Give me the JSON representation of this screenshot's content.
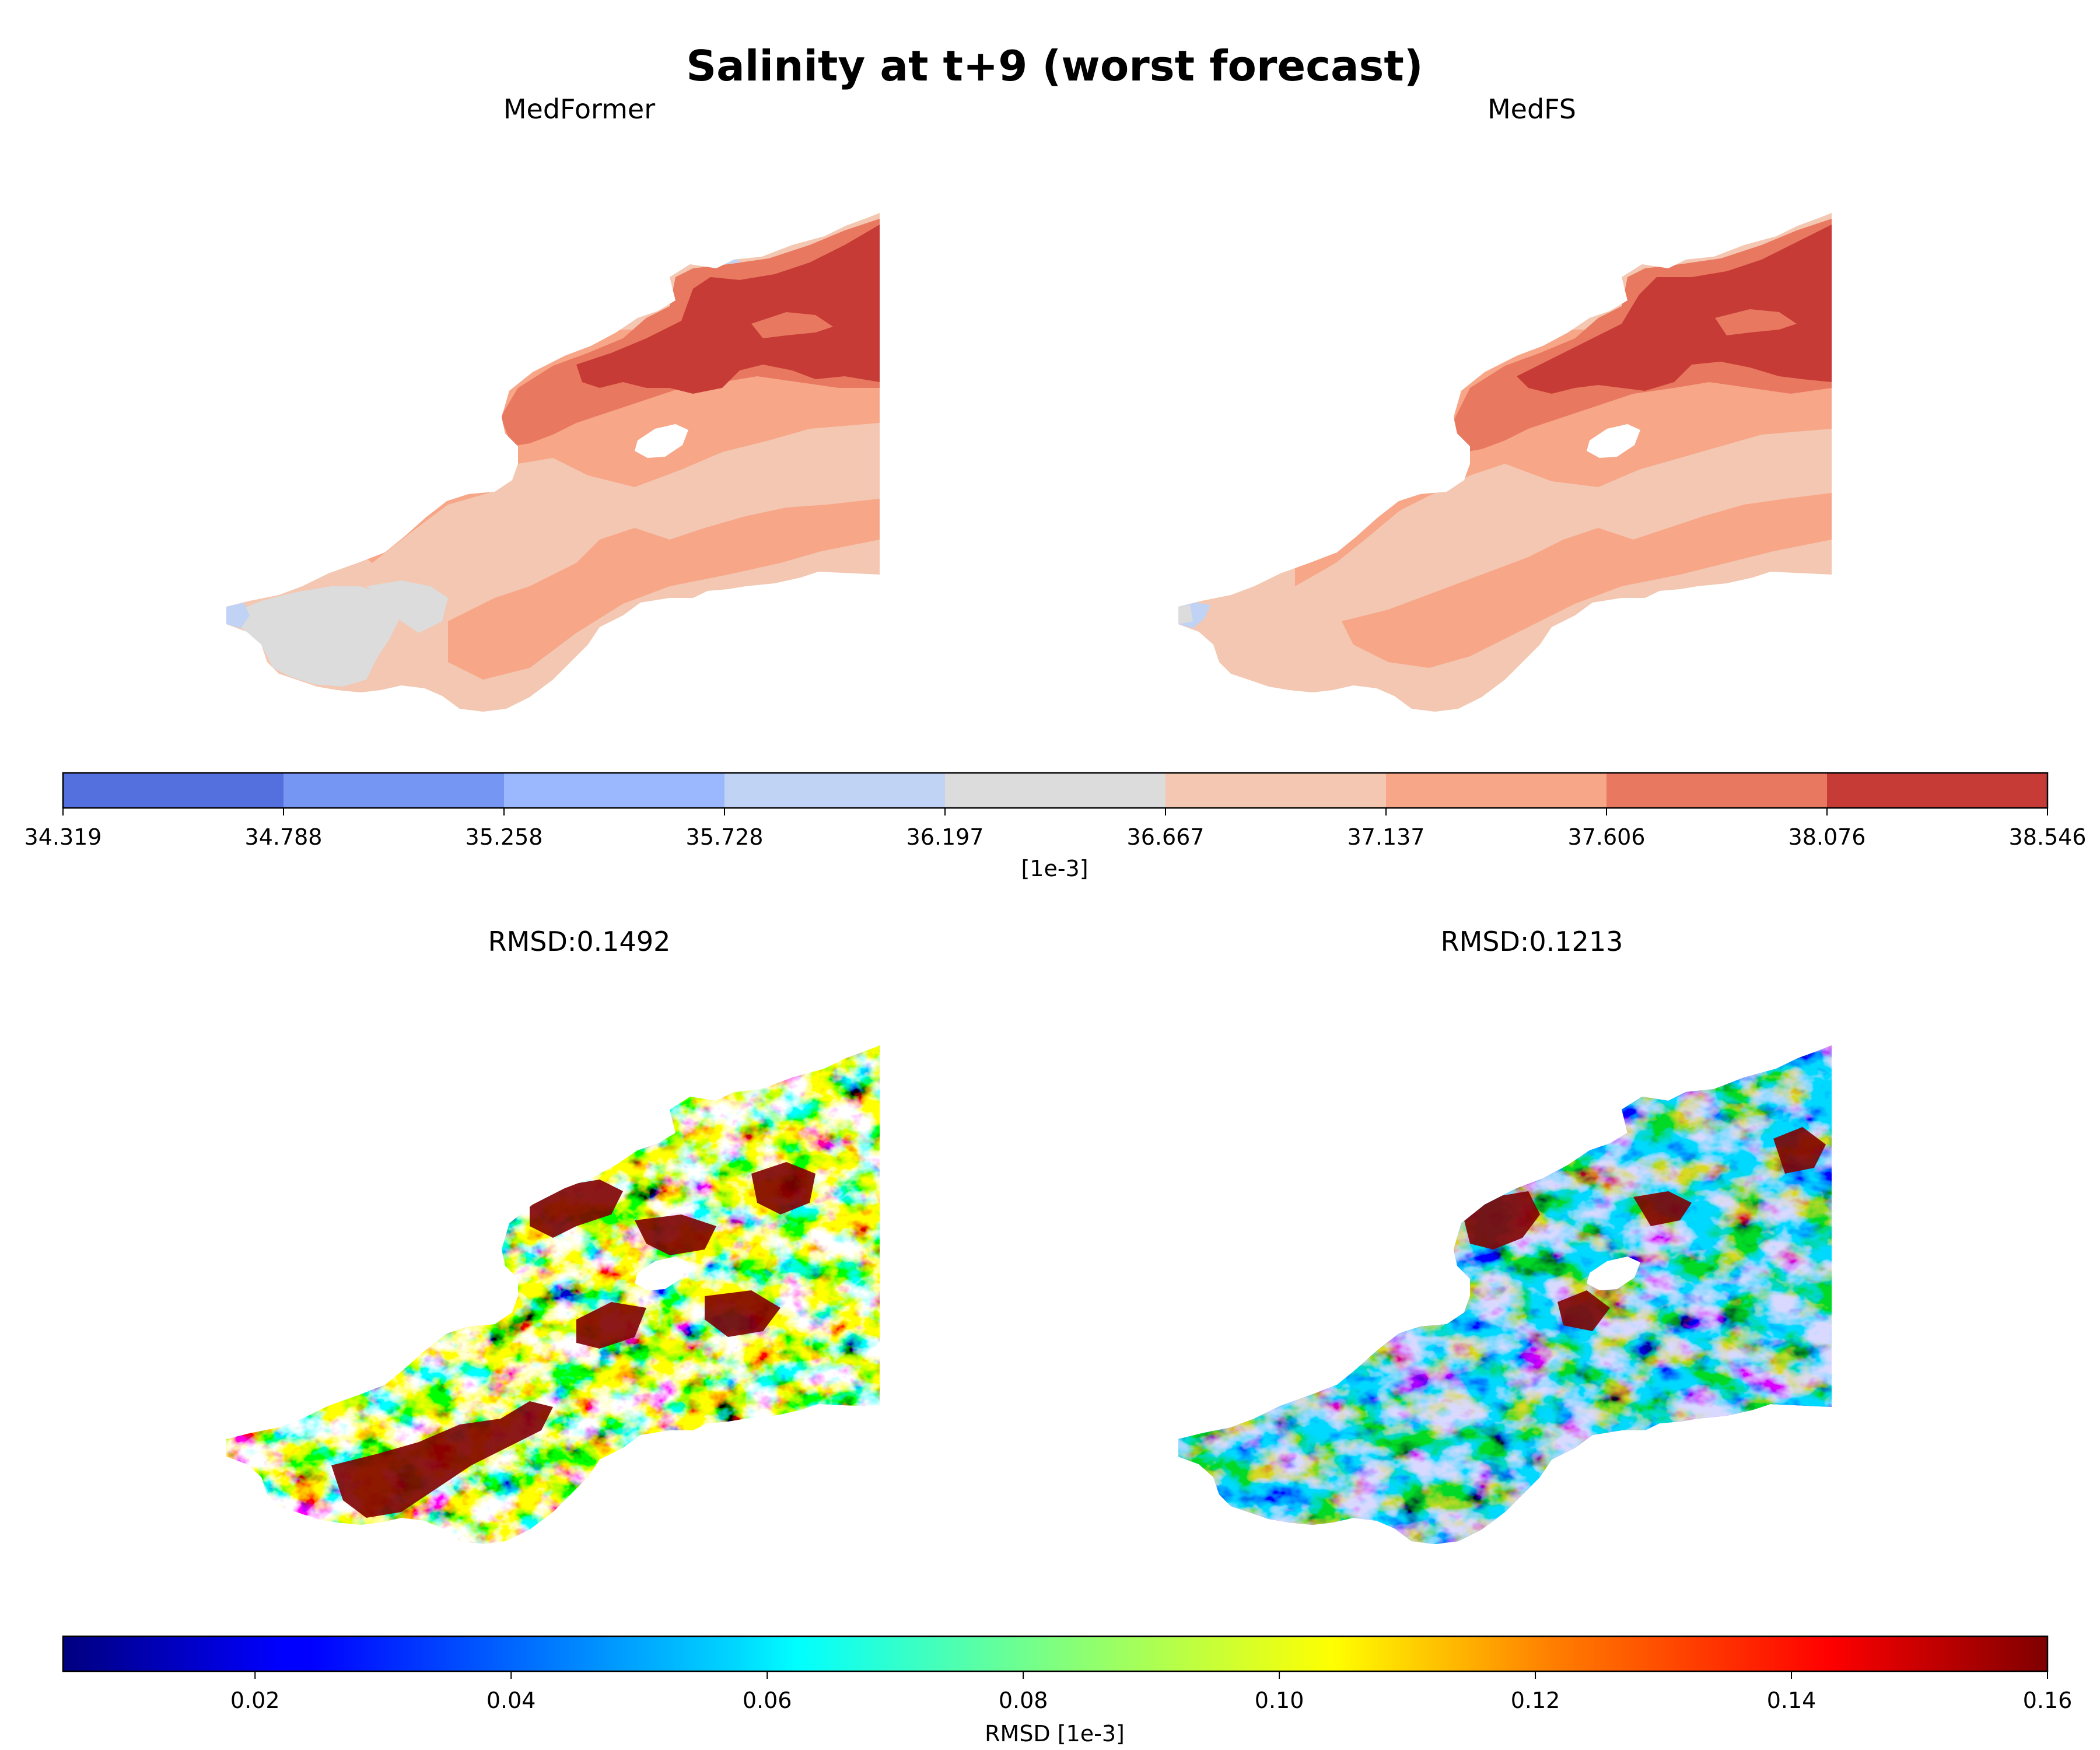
{
  "figure": {
    "title": "Salinity at t+9 (worst forecast)"
  },
  "chart_data": [
    {
      "type": "heatmap",
      "title": "MedFormer",
      "description_level": "contour-filled salinity field",
      "colormap": "coolwarm",
      "colorbar_ref": "salinity_colorbar"
    },
    {
      "type": "heatmap",
      "title": "MedFS",
      "colormap": "coolwarm",
      "colorbar_ref": "salinity_colorbar"
    },
    {
      "type": "heatmap",
      "title": "RMSD:0.1492",
      "colormap": "jet",
      "colorbar_ref": "rmsd_colorbar"
    },
    {
      "type": "heatmap",
      "title": "RMSD:0.1213",
      "colormap": "jet",
      "colorbar_ref": "rmsd_colorbar"
    }
  ],
  "salinity_colorbar": {
    "label": "[1e-3]",
    "ticks": [
      "34.319",
      "34.788",
      "35.258",
      "35.728",
      "36.197",
      "36.667",
      "37.137",
      "37.606",
      "38.076",
      "38.546"
    ],
    "bin_colors": [
      "#5470de",
      "#7596f3",
      "#9bb8fe",
      "#c1d3f5",
      "#dcdcdc",
      "#f3c7b1",
      "#f7a688",
      "#e8785f",
      "#c63b35"
    ]
  },
  "rmsd_colorbar": {
    "label": "RMSD [1e-3]",
    "range": [
      0.005,
      0.16
    ],
    "ticks": [
      "0.02",
      "0.04",
      "0.06",
      "0.08",
      "0.10",
      "0.12",
      "0.14",
      "0.16"
    ],
    "tick_values": [
      0.02,
      0.04,
      0.06,
      0.08,
      0.1,
      0.12,
      0.14,
      0.16
    ],
    "colors": [
      "#00007f",
      "#0000ff",
      "#007fff",
      "#00ffff",
      "#7fff7f",
      "#ffff00",
      "#ff7f00",
      "#ff0000",
      "#7f0000"
    ]
  }
}
